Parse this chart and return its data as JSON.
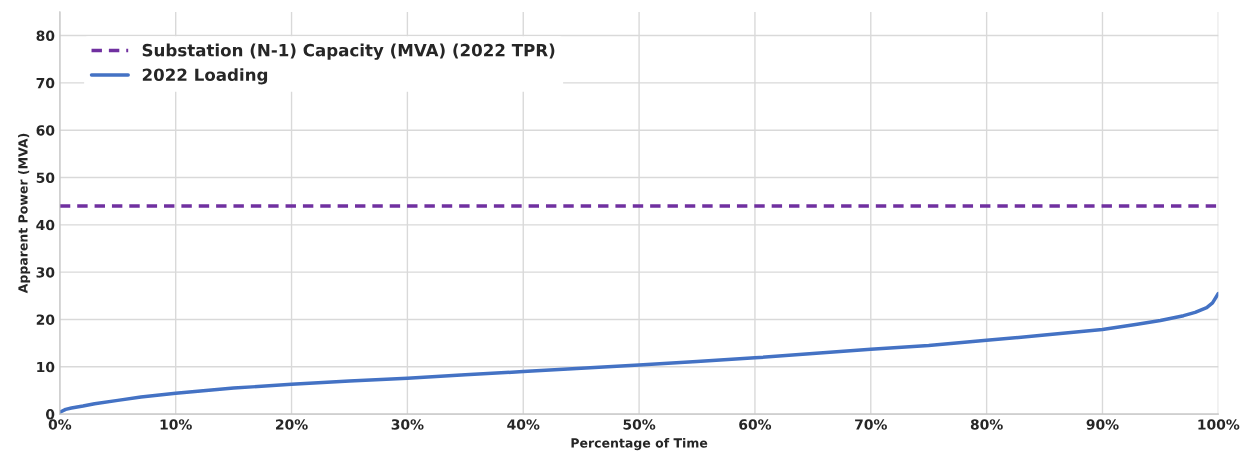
{
  "chart_data": {
    "type": "line",
    "xlabel": "Percentage of Time",
    "ylabel": "Apparent Power (MVA)",
    "xlim": [
      0,
      100
    ],
    "xticks": [
      {
        "value": 0,
        "label": "0%"
      },
      {
        "value": 10,
        "label": "10%"
      },
      {
        "value": 20,
        "label": "20%"
      },
      {
        "value": 30,
        "label": "30%"
      },
      {
        "value": 40,
        "label": "40%"
      },
      {
        "value": 50,
        "label": "50%"
      },
      {
        "value": 60,
        "label": "60%"
      },
      {
        "value": 70,
        "label": "70%"
      },
      {
        "value": 80,
        "label": "80%"
      },
      {
        "value": 90,
        "label": "90%"
      },
      {
        "value": 100,
        "label": "100%"
      }
    ],
    "ylim": [
      0,
      85
    ],
    "yticks": [
      0,
      10,
      20,
      30,
      40,
      50,
      60,
      70,
      80
    ],
    "grid": true,
    "legend": "top left",
    "marker": "none",
    "series": [
      {
        "name": "Substation (N-1) Capacity (MVA) (2022 TPR)",
        "color": "#7030a0",
        "line_style": "dashed",
        "x": [
          0,
          100
        ],
        "values": [
          44,
          44
        ]
      },
      {
        "name": "2022 Loading",
        "color": "#4472c4",
        "line_style": "solid",
        "x": [
          0,
          0.5,
          1,
          2,
          3,
          5,
          7,
          10,
          15,
          20,
          25,
          30,
          35,
          40,
          45,
          50,
          55,
          60,
          65,
          70,
          75,
          80,
          85,
          90,
          93,
          95,
          97,
          98,
          99,
          99.5,
          100
        ],
        "values": [
          0.4,
          1,
          1.3,
          1.7,
          2.2,
          2.9,
          3.6,
          4.4,
          5.5,
          6.3,
          7,
          7.6,
          8.3,
          9,
          9.7,
          10.4,
          11.1,
          11.9,
          12.8,
          13.7,
          14.5,
          15.6,
          16.7,
          17.9,
          19,
          19.8,
          20.8,
          21.5,
          22.5,
          23.5,
          25.5
        ]
      }
    ]
  }
}
